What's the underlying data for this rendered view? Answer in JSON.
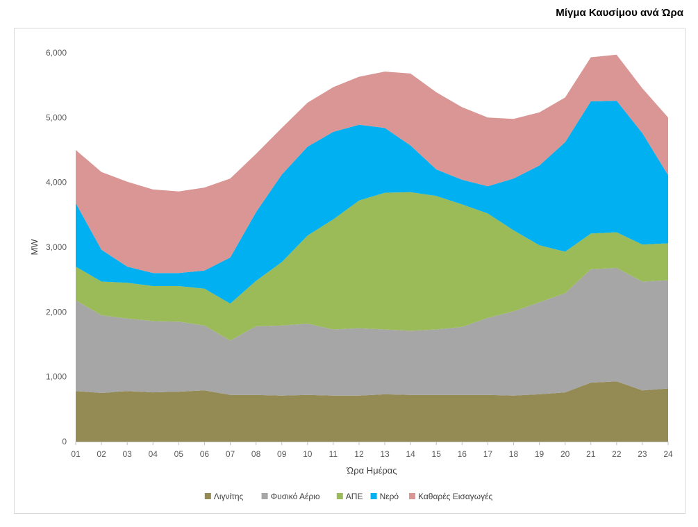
{
  "title": "Μίγμα Καυσίμου ανά Ώρα",
  "chart_data": {
    "type": "area",
    "stacked": true,
    "title": "Μίγμα Καυσίμου ανά Ώρα",
    "xlabel": "Ώρα Ημέρας",
    "ylabel": "MW",
    "ylim": [
      0,
      6000
    ],
    "yticks": [
      "0",
      "1,000",
      "2,000",
      "3,000",
      "4,000",
      "5,000",
      "6,000"
    ],
    "grid": false,
    "legend_position": "bottom",
    "categories": [
      "01",
      "02",
      "03",
      "04",
      "05",
      "06",
      "07",
      "08",
      "09",
      "10",
      "11",
      "12",
      "13",
      "14",
      "15",
      "16",
      "17",
      "18",
      "19",
      "20",
      "21",
      "22",
      "23",
      "24"
    ],
    "series": [
      {
        "name": "Λιγνίτης",
        "color": "#948a54",
        "values": [
          780,
          750,
          780,
          760,
          770,
          790,
          720,
          720,
          710,
          720,
          710,
          710,
          730,
          720,
          720,
          720,
          720,
          710,
          730,
          760,
          910,
          930,
          790,
          820
        ]
      },
      {
        "name": "Φυσικό Αέριο",
        "color": "#a6a6a6",
        "values": [
          1400,
          1200,
          1120,
          1100,
          1080,
          1000,
          840,
          1060,
          1080,
          1100,
          1020,
          1040,
          1000,
          990,
          1010,
          1050,
          1190,
          1300,
          1420,
          1530,
          1750,
          1750,
          1680,
          1670
        ]
      },
      {
        "name": "ΑΠΕ",
        "color": "#9bbb59",
        "values": [
          520,
          520,
          550,
          540,
          550,
          570,
          570,
          700,
          980,
          1360,
          1700,
          1970,
          2110,
          2140,
          2060,
          1890,
          1610,
          1250,
          880,
          640,
          550,
          550,
          570,
          570
        ]
      },
      {
        "name": "Νερό",
        "color": "#00b0f0",
        "values": [
          980,
          490,
          250,
          200,
          200,
          280,
          710,
          1060,
          1350,
          1370,
          1350,
          1170,
          1000,
          720,
          410,
          380,
          420,
          800,
          1230,
          1690,
          2040,
          2030,
          1720,
          1050
        ]
      },
      {
        "name": "Καθαρές Εισαγωγές",
        "color": "#d99694",
        "values": [
          820,
          1200,
          1310,
          1290,
          1260,
          1280,
          1220,
          900,
          720,
          680,
          690,
          740,
          870,
          1110,
          1190,
          1120,
          1060,
          920,
          820,
          690,
          680,
          710,
          690,
          890
        ]
      }
    ]
  }
}
